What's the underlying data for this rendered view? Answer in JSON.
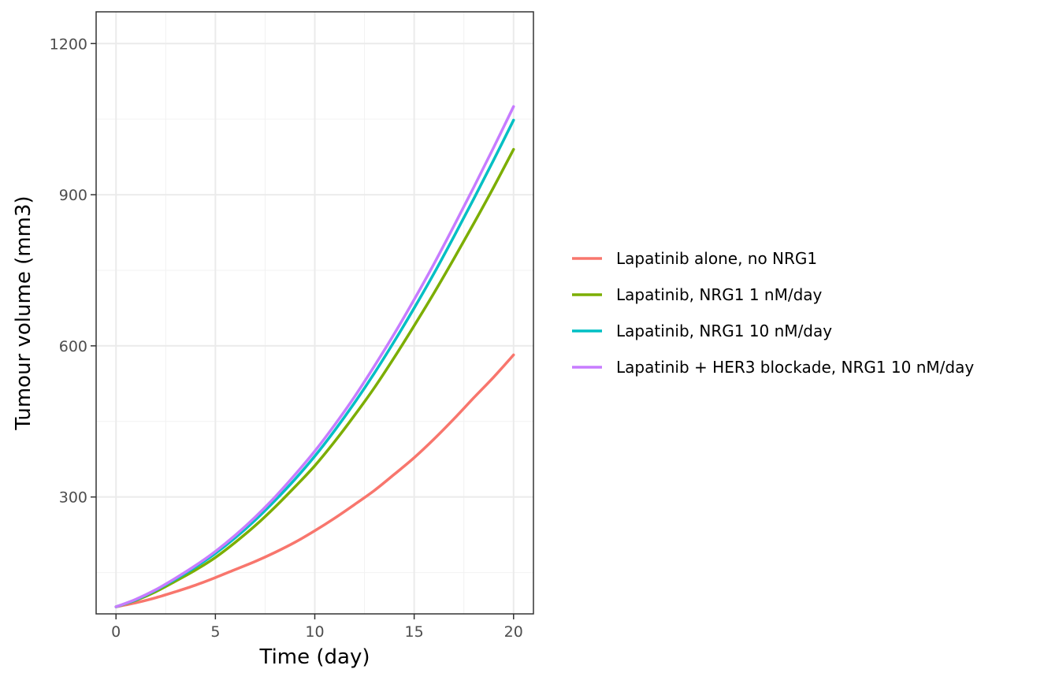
{
  "chart_data": {
    "type": "line",
    "title": "",
    "xlabel": "Time (day)",
    "ylabel": "Tumour volume (mm3)",
    "xlim": [
      -1,
      21
    ],
    "ylim": [
      68,
      1263
    ],
    "x_ticks": [
      0,
      5,
      10,
      15,
      20
    ],
    "y_ticks": [
      300,
      600,
      900,
      1200
    ],
    "x_tick_labels": [
      "0",
      "5",
      "10",
      "15",
      "20"
    ],
    "y_tick_labels": [
      "300",
      "600",
      "900",
      "1200"
    ],
    "grid": true,
    "legend_position": "right",
    "series": [
      {
        "name": "Lapatinib alone, no NRG1",
        "color": "#F8766D",
        "x": [
          0,
          1,
          2,
          3,
          4,
          5,
          6,
          7,
          8,
          9,
          10,
          11,
          12,
          13,
          14,
          15,
          16,
          17,
          18,
          19,
          20
        ],
        "y": [
          82,
          90,
          100,
          112,
          125,
          140,
          156,
          172,
          190,
          210,
          233,
          258,
          285,
          313,
          345,
          378,
          415,
          455,
          497,
          538,
          582
        ]
      },
      {
        "name": "Lapatinib, NRG1 1 nM/day",
        "color": "#7CAE00",
        "x": [
          0,
          1,
          2,
          3,
          4,
          5,
          6,
          7,
          8,
          9,
          10,
          11,
          12,
          13,
          14,
          15,
          16,
          17,
          18,
          19,
          20
        ],
        "y": [
          82,
          95,
          112,
          133,
          155,
          180,
          210,
          243,
          280,
          320,
          362,
          410,
          462,
          517,
          577,
          640,
          705,
          773,
          843,
          915,
          990
        ]
      },
      {
        "name": "Lapatinib, NRG1 10 nM/day",
        "color": "#00BFC4",
        "x": [
          0,
          1,
          2,
          3,
          4,
          5,
          6,
          7,
          8,
          9,
          10,
          11,
          12,
          13,
          14,
          15,
          16,
          17,
          18,
          19,
          20
        ],
        "y": [
          82,
          96,
          115,
          137,
          161,
          188,
          219,
          254,
          293,
          335,
          381,
          432,
          487,
          546,
          609,
          675,
          744,
          817,
          892,
          969,
          1048
        ]
      },
      {
        "name": "Lapatinib + HER3 blockade, NRG1 10 nM/day",
        "color": "#C77CFF",
        "x": [
          0,
          1,
          2,
          3,
          4,
          5,
          6,
          7,
          8,
          9,
          10,
          11,
          12,
          13,
          14,
          15,
          16,
          17,
          18,
          19,
          20
        ],
        "y": [
          82,
          97,
          116,
          139,
          164,
          192,
          224,
          260,
          300,
          344,
          391,
          443,
          499,
          560,
          624,
          692,
          763,
          838,
          915,
          994,
          1075
        ]
      }
    ]
  }
}
